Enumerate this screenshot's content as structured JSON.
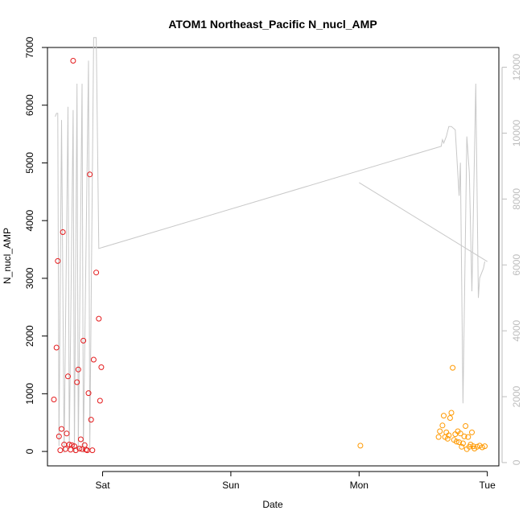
{
  "chart_data": {
    "type": "scatter",
    "title": "ATOM1 Northeast_Pacific N_nucl_AMP",
    "xlabel": "Date",
    "ylabel": "N_nucl_AMP",
    "x_ticks": [
      "Sat",
      "Sun",
      "Mon",
      "Tue"
    ],
    "x_tick_positions": [
      1,
      2,
      3,
      4
    ],
    "xlim": [
      0.57,
      4.09
    ],
    "ylim": [
      -250,
      7000
    ],
    "y_ticks": [
      0,
      1000,
      2000,
      3000,
      4000,
      5000,
      6000,
      7000
    ],
    "y2lim": [
      -100,
      12600
    ],
    "y2_ticks": [
      0,
      2000,
      4000,
      6000,
      8000,
      10000,
      12000
    ],
    "series": [
      {
        "color": "#e41a1c",
        "marker": "circle-open",
        "points": [
          [
            0.62,
            900
          ],
          [
            0.64,
            1800
          ],
          [
            0.65,
            3300
          ],
          [
            0.66,
            260
          ],
          [
            0.67,
            20
          ],
          [
            0.68,
            390
          ],
          [
            0.69,
            3800
          ],
          [
            0.7,
            120
          ],
          [
            0.71,
            40
          ],
          [
            0.72,
            310
          ],
          [
            0.73,
            1300
          ],
          [
            0.74,
            120
          ],
          [
            0.75,
            30
          ],
          [
            0.76,
            110
          ],
          [
            0.77,
            6770
          ],
          [
            0.78,
            90
          ],
          [
            0.79,
            20
          ],
          [
            0.8,
            1200
          ],
          [
            0.81,
            1420
          ],
          [
            0.82,
            50
          ],
          [
            0.83,
            210
          ],
          [
            0.84,
            40
          ],
          [
            0.85,
            1920
          ],
          [
            0.86,
            110
          ],
          [
            0.87,
            30
          ],
          [
            0.88,
            20
          ],
          [
            0.89,
            1010
          ],
          [
            0.9,
            4800
          ],
          [
            0.91,
            550
          ],
          [
            0.92,
            20
          ],
          [
            0.93,
            1590
          ],
          [
            0.95,
            3100
          ],
          [
            0.97,
            2300
          ],
          [
            0.98,
            880
          ],
          [
            0.99,
            1460
          ]
        ]
      },
      {
        "color": "#ff9900",
        "marker": "circle-open",
        "points": [
          [
            3.01,
            100
          ],
          [
            3.62,
            250
          ],
          [
            3.63,
            350
          ],
          [
            3.65,
            450
          ],
          [
            3.66,
            620
          ],
          [
            3.67,
            250
          ],
          [
            3.68,
            330
          ],
          [
            3.69,
            220
          ],
          [
            3.7,
            280
          ],
          [
            3.71,
            580
          ],
          [
            3.72,
            670
          ],
          [
            3.73,
            1450
          ],
          [
            3.74,
            200
          ],
          [
            3.75,
            300
          ],
          [
            3.76,
            170
          ],
          [
            3.77,
            350
          ],
          [
            3.78,
            160
          ],
          [
            3.79,
            310
          ],
          [
            3.8,
            80
          ],
          [
            3.81,
            140
          ],
          [
            3.82,
            260
          ],
          [
            3.83,
            440
          ],
          [
            3.84,
            40
          ],
          [
            3.85,
            250
          ],
          [
            3.86,
            80
          ],
          [
            3.87,
            120
          ],
          [
            3.88,
            330
          ],
          [
            3.89,
            90
          ],
          [
            3.9,
            50
          ],
          [
            3.92,
            80
          ],
          [
            3.94,
            100
          ],
          [
            3.96,
            70
          ],
          [
            3.98,
            90
          ]
        ]
      }
    ],
    "secondary_line": {
      "color": "#c8c8c8",
      "axis": "right",
      "points": [
        [
          0.63,
          10500
        ],
        [
          0.64,
          10600
        ],
        [
          0.65,
          10600
        ],
        [
          0.66,
          500
        ],
        [
          0.68,
          10400
        ],
        [
          0.7,
          300
        ],
        [
          0.73,
          10800
        ],
        [
          0.74,
          400
        ],
        [
          0.77,
          10700
        ],
        [
          0.78,
          300
        ],
        [
          0.8,
          11500
        ],
        [
          0.81,
          400
        ],
        [
          0.84,
          11500
        ],
        [
          0.85,
          300
        ],
        [
          0.89,
          12200
        ],
        [
          0.9,
          400
        ],
        [
          0.93,
          12900
        ],
        [
          0.95,
          12900
        ],
        [
          0.97,
          6500
        ],
        [
          3.64,
          9600
        ],
        [
          3.65,
          9800
        ],
        [
          3.66,
          9700
        ],
        [
          3.68,
          9900
        ],
        [
          3.7,
          10200
        ],
        [
          3.72,
          10200
        ],
        [
          3.75,
          10100
        ],
        [
          3.78,
          8100
        ],
        [
          3.79,
          9100
        ],
        [
          3.81,
          1800
        ],
        [
          3.84,
          9900
        ],
        [
          3.86,
          8800
        ],
        [
          3.88,
          5200
        ],
        [
          3.91,
          11500
        ],
        [
          3.93,
          5000
        ],
        [
          3.94,
          5600
        ],
        [
          3.96,
          5800
        ],
        [
          3.97,
          5900
        ],
        [
          3.98,
          6100
        ]
      ]
    },
    "secondary_line_extra": {
      "color": "#c8c8c8",
      "points": [
        [
          3.0,
          8500
        ],
        [
          4.0,
          6100
        ]
      ]
    },
    "grid": false,
    "legend": "none"
  }
}
